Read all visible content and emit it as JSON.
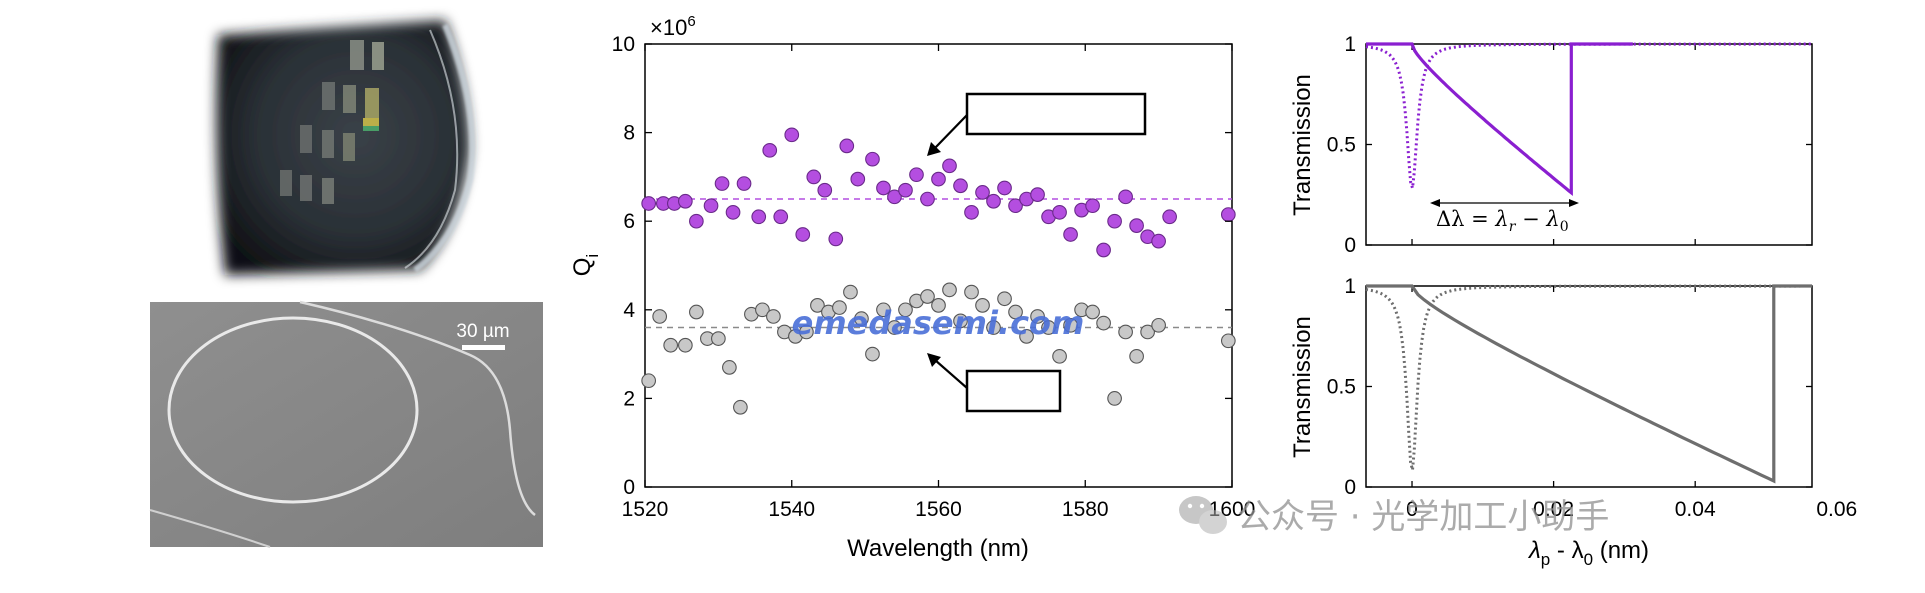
{
  "left_panel": {
    "scale_bar_label": "30 µm"
  },
  "watermarks": {
    "center": "emedasemi.com",
    "bottom_right": "公众号 · 光学加工小助手"
  },
  "chart_data": [
    {
      "type": "scatter",
      "title": "",
      "xlabel": "Wavelength (nm)",
      "ylabel": "Q",
      "ylabel_subscript": "i",
      "y_multiplier": "×10",
      "y_multiplier_exp": "6",
      "xlim": [
        1520,
        1600
      ],
      "ylim": [
        0,
        10
      ],
      "xticks": [
        "1520",
        "1540",
        "1560",
        "1580",
        "1600"
      ],
      "yticks": [
        "0",
        "2",
        "4",
        "6",
        "8",
        "10"
      ],
      "grid": false,
      "series": [
        {
          "color": "#b44ee0",
          "edge": "#6a2a8a",
          "mean_line": 6.5,
          "points": [
            [
              1520.5,
              6.4
            ],
            [
              1522.5,
              6.4
            ],
            [
              1524,
              6.4
            ],
            [
              1525.5,
              6.45
            ],
            [
              1527,
              6.0
            ],
            [
              1529,
              6.35
            ],
            [
              1530.5,
              6.85
            ],
            [
              1532,
              6.2
            ],
            [
              1533.5,
              6.85
            ],
            [
              1535.5,
              6.1
            ],
            [
              1537,
              7.6
            ],
            [
              1538.5,
              6.1
            ],
            [
              1540,
              7.95
            ],
            [
              1541.5,
              5.7
            ],
            [
              1543,
              7.0
            ],
            [
              1544.5,
              6.7
            ],
            [
              1546,
              5.6
            ],
            [
              1547.5,
              7.7
            ],
            [
              1549,
              6.95
            ],
            [
              1551,
              7.4
            ],
            [
              1552.5,
              6.75
            ],
            [
              1554,
              6.55
            ],
            [
              1555.5,
              6.7
            ],
            [
              1557,
              7.05
            ],
            [
              1558.5,
              6.5
            ],
            [
              1560,
              6.95
            ],
            [
              1561.5,
              7.25
            ],
            [
              1563,
              6.8
            ],
            [
              1564.5,
              6.2
            ],
            [
              1566,
              6.65
            ],
            [
              1567.5,
              6.45
            ],
            [
              1569,
              6.75
            ],
            [
              1570.5,
              6.35
            ],
            [
              1572,
              6.5
            ],
            [
              1573.5,
              6.6
            ],
            [
              1575,
              6.1
            ],
            [
              1576.5,
              6.2
            ],
            [
              1578,
              5.7
            ],
            [
              1579.5,
              6.25
            ],
            [
              1581,
              6.35
            ],
            [
              1582.5,
              5.35
            ],
            [
              1584,
              6.0
            ],
            [
              1585.5,
              6.55
            ],
            [
              1587,
              5.9
            ],
            [
              1588.5,
              5.65
            ],
            [
              1590,
              5.55
            ],
            [
              1591.5,
              6.1
            ],
            [
              1599.5,
              6.15
            ]
          ]
        },
        {
          "color": "#c8c8c8",
          "edge": "#555555",
          "mean_line": 3.6,
          "points": [
            [
              1520.5,
              2.4
            ],
            [
              1522,
              3.85
            ],
            [
              1523.5,
              3.2
            ],
            [
              1525.5,
              3.2
            ],
            [
              1527,
              3.95
            ],
            [
              1528.5,
              3.35
            ],
            [
              1530,
              3.35
            ],
            [
              1531.5,
              2.7
            ],
            [
              1533,
              1.8
            ],
            [
              1534.5,
              3.9
            ],
            [
              1536,
              4.0
            ],
            [
              1537.5,
              3.85
            ],
            [
              1539,
              3.5
            ],
            [
              1540.5,
              3.4
            ],
            [
              1542,
              3.5
            ],
            [
              1543.5,
              4.1
            ],
            [
              1545,
              3.95
            ],
            [
              1546.5,
              4.05
            ],
            [
              1548,
              4.4
            ],
            [
              1549.5,
              3.8
            ],
            [
              1551,
              3.0
            ],
            [
              1552.5,
              4.0
            ],
            [
              1554,
              3.6
            ],
            [
              1555.5,
              4.0
            ],
            [
              1557,
              4.2
            ],
            [
              1558.5,
              4.3
            ],
            [
              1560,
              4.1
            ],
            [
              1561.5,
              4.45
            ],
            [
              1563,
              3.75
            ],
            [
              1564.5,
              4.4
            ],
            [
              1566,
              4.1
            ],
            [
              1567.5,
              3.6
            ],
            [
              1569,
              4.25
            ],
            [
              1570.5,
              3.95
            ],
            [
              1572,
              3.4
            ],
            [
              1573.5,
              3.85
            ],
            [
              1575,
              3.6
            ],
            [
              1576.5,
              2.95
            ],
            [
              1578,
              3.65
            ],
            [
              1579.5,
              4.0
            ],
            [
              1581,
              3.95
            ],
            [
              1582.5,
              3.7
            ],
            [
              1584,
              2.0
            ],
            [
              1585.5,
              3.5
            ],
            [
              1587,
              2.95
            ],
            [
              1588.5,
              3.5
            ],
            [
              1590,
              3.65
            ],
            [
              1599.5,
              3.3
            ]
          ]
        }
      ],
      "annotation_boxes": [
        {
          "label": "",
          "points_to_series": 0
        },
        {
          "label": "",
          "points_to_series": 1
        }
      ]
    },
    {
      "type": "line",
      "xlabel": "",
      "ylabel": "Transmission",
      "xlim": [
        -0.0065,
        0.0565
      ],
      "ylim": [
        0,
        1
      ],
      "yticks": [
        "0",
        "0.5",
        "1"
      ],
      "color": "#8a1fd0",
      "annotation": "Δλ = λ_r − λ_0",
      "annotation_text": "Δλ = ",
      "annotation_lambda": "λ",
      "annotation_r": "r",
      "annotation_minus": " − ",
      "annotation_0": "0",
      "dotted_dip": {
        "center": 0.0,
        "min": 0.28,
        "width": 0.0009
      },
      "solid_curve": {
        "start": 0.0,
        "min_at": 0.0225,
        "min": 0.26,
        "end": 0.0312
      }
    },
    {
      "type": "line",
      "xlabel": "λp - λ0 (nm)",
      "xlabel_lambda": "λ",
      "xlabel_p": "p",
      "xlabel_mid": " - λ",
      "xlabel_0": "0",
      "xlabel_unit": " (nm)",
      "ylabel": "Transmission",
      "xlim": [
        -0.0065,
        0.0565
      ],
      "ylim": [
        0,
        1
      ],
      "xticks": [
        "0",
        "0.02",
        "0.04",
        "0.06"
      ],
      "yticks": [
        "0",
        "0.5",
        "1"
      ],
      "color": "#6e6e6e",
      "dotted_dip": {
        "center": 0.0,
        "min": 0.08,
        "width": 0.0009
      },
      "solid_curve": {
        "start": 0.0,
        "min_at": 0.0511,
        "min": 0.03,
        "end": 0.0565
      }
    }
  ]
}
